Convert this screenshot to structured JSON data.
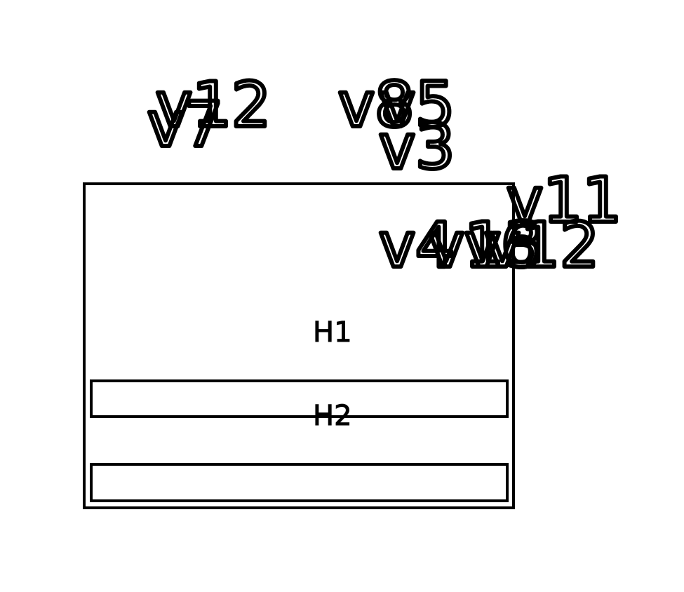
{
  "diagram": {
    "outer_frame": {
      "label": ""
    },
    "bars": [
      {
        "label": "H1"
      },
      {
        "label": "H2"
      }
    ],
    "vertex_labels": [
      {
        "id": "v7",
        "text": "v7"
      },
      {
        "id": "v12_top",
        "text": "v12"
      },
      {
        "id": "v8",
        "text": "v8"
      },
      {
        "id": "v5",
        "text": "v5"
      },
      {
        "id": "v3",
        "text": "v3"
      },
      {
        "id": "v11",
        "text": "v11"
      },
      {
        "id": "v4",
        "text": "v4"
      },
      {
        "id": "v13",
        "text": "v13"
      },
      {
        "id": "v6",
        "text": "v6"
      },
      {
        "id": "v12_right",
        "text": "v12"
      }
    ],
    "colors": {
      "stroke": "#000000",
      "background": "#ffffff"
    }
  }
}
